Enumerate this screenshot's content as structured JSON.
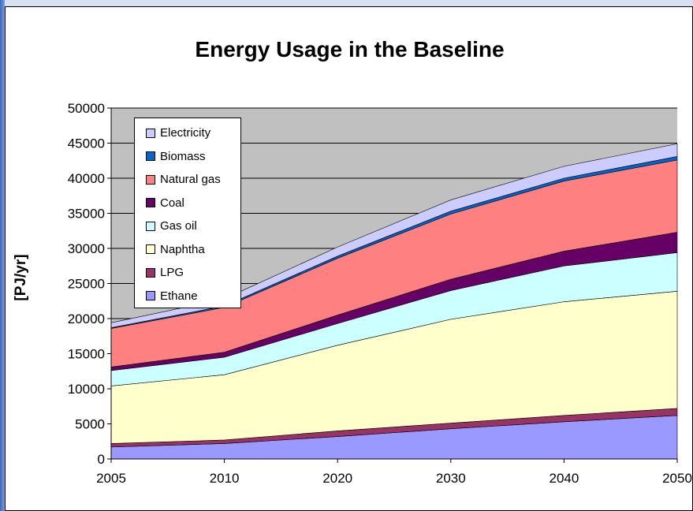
{
  "chart_data": {
    "type": "area",
    "stacked": true,
    "title": "Energy Usage in the Baseline",
    "ylabel": "[PJ/yr]",
    "xlabel": "",
    "categories": [
      "2005",
      "2010",
      "2020",
      "2030",
      "2040",
      "2050"
    ],
    "ylim": [
      0,
      50000
    ],
    "yticks": [
      0,
      5000,
      10000,
      15000,
      20000,
      25000,
      30000,
      35000,
      40000,
      45000,
      50000
    ],
    "grid": true,
    "plot_background": "#c0c0c0",
    "legend_position": "top-left",
    "series": [
      {
        "name": "Ethane",
        "color": "#9999ff",
        "values": [
          1700,
          2200,
          3200,
          4300,
          5300,
          6200
        ]
      },
      {
        "name": "LPG",
        "color": "#993366",
        "values": [
          500,
          500,
          800,
          800,
          900,
          1000
        ]
      },
      {
        "name": "Naphtha",
        "color": "#ffffcc",
        "values": [
          8200,
          9300,
          12200,
          14800,
          16200,
          16700
        ]
      },
      {
        "name": "Gas oil",
        "color": "#ccffff",
        "values": [
          2200,
          2500,
          3100,
          4100,
          5100,
          5500
        ]
      },
      {
        "name": "Coal",
        "color": "#660066",
        "values": [
          500,
          700,
          1200,
          1600,
          2100,
          2900
        ]
      },
      {
        "name": "Natural gas",
        "color": "#ff8080",
        "values": [
          5500,
          6400,
          8100,
          9300,
          10000,
          10300
        ]
      },
      {
        "name": "Biomass",
        "color": "#0066cc",
        "values": [
          100,
          200,
          300,
          400,
          400,
          500
        ]
      },
      {
        "name": "Electricity",
        "color": "#ccccff",
        "values": [
          700,
          1000,
          1300,
          1600,
          1700,
          1800
        ]
      }
    ]
  }
}
